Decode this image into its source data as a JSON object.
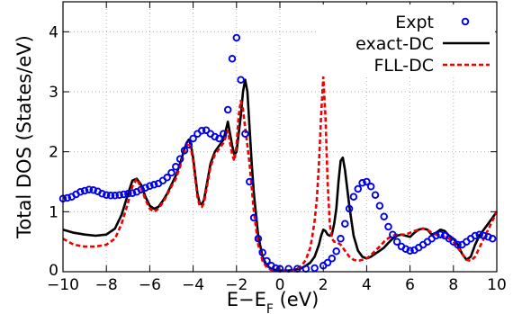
{
  "chart_data": {
    "type": "line",
    "title": "",
    "xlabel": "E−E",
    "xlabel_sub": "F",
    "xlabel_unit": " (eV)",
    "ylabel": "Total DOS (States/eV)",
    "xlim": [
      -10,
      10
    ],
    "ylim": [
      0,
      4.5
    ],
    "x_ticks": [
      -10,
      -8,
      -6,
      -4,
      -2,
      0,
      2,
      4,
      6,
      8,
      10
    ],
    "y_ticks": [
      0,
      1,
      2,
      3,
      4
    ],
    "x_tick_labels": [
      "−10",
      "−8",
      "−6",
      "−4",
      "−2",
      "0",
      "2",
      "4",
      "6",
      "8",
      "10"
    ],
    "y_tick_labels": [
      "0",
      "1",
      "2",
      "3",
      "4"
    ],
    "grid": true,
    "legend_position": "top-right",
    "series": [
      {
        "name": "Expt",
        "style": "markers",
        "color": "#0000ee",
        "x": [
          -10.0,
          -9.8,
          -9.6,
          -9.4,
          -9.2,
          -9.0,
          -8.8,
          -8.6,
          -8.4,
          -8.2,
          -8.0,
          -7.8,
          -7.6,
          -7.4,
          -7.2,
          -7.0,
          -6.8,
          -6.6,
          -6.4,
          -6.2,
          -6.0,
          -5.8,
          -5.6,
          -5.4,
          -5.2,
          -5.0,
          -4.8,
          -4.6,
          -4.4,
          -4.2,
          -4.0,
          -3.8,
          -3.6,
          -3.4,
          -3.2,
          -3.0,
          -2.8,
          -2.6,
          -2.4,
          -2.2,
          -2.0,
          -1.8,
          -1.6,
          -1.4,
          -1.2,
          -1.0,
          -0.8,
          -0.6,
          -0.4,
          -0.2,
          0.0,
          0.4,
          0.8,
          1.2,
          1.6,
          2.0,
          2.2,
          2.4,
          2.6,
          2.8,
          3.0,
          3.2,
          3.4,
          3.6,
          3.8,
          4.0,
          4.2,
          4.4,
          4.6,
          4.8,
          5.0,
          5.2,
          5.4,
          5.6,
          5.8,
          6.0,
          6.2,
          6.4,
          6.6,
          6.8,
          7.0,
          7.2,
          7.4,
          7.6,
          7.8,
          8.0,
          8.2,
          8.4,
          8.6,
          8.8,
          9.0,
          9.2,
          9.4,
          9.6,
          9.8
        ],
        "y": [
          1.22,
          1.23,
          1.25,
          1.29,
          1.33,
          1.35,
          1.37,
          1.36,
          1.34,
          1.3,
          1.28,
          1.27,
          1.27,
          1.28,
          1.29,
          1.3,
          1.31,
          1.33,
          1.37,
          1.4,
          1.43,
          1.45,
          1.47,
          1.52,
          1.57,
          1.65,
          1.75,
          1.88,
          2.02,
          2.12,
          2.22,
          2.3,
          2.35,
          2.36,
          2.3,
          2.25,
          2.22,
          2.3,
          2.7,
          3.55,
          3.9,
          3.2,
          2.3,
          1.5,
          0.9,
          0.55,
          0.32,
          0.18,
          0.1,
          0.06,
          0.05,
          0.05,
          0.05,
          0.05,
          0.06,
          0.1,
          0.15,
          0.22,
          0.34,
          0.55,
          0.8,
          1.05,
          1.25,
          1.38,
          1.48,
          1.5,
          1.42,
          1.28,
          1.1,
          0.92,
          0.75,
          0.62,
          0.5,
          0.42,
          0.38,
          0.35,
          0.36,
          0.4,
          0.45,
          0.5,
          0.55,
          0.6,
          0.62,
          0.6,
          0.55,
          0.5,
          0.45,
          0.45,
          0.5,
          0.55,
          0.6,
          0.62,
          0.6,
          0.58,
          0.55
        ]
      },
      {
        "name": "exact-DC",
        "style": "solid",
        "color": "#000000",
        "x": [
          -10.0,
          -9.5,
          -9.0,
          -8.5,
          -8.0,
          -7.6,
          -7.3,
          -7.0,
          -6.8,
          -6.6,
          -6.4,
          -6.2,
          -6.0,
          -5.8,
          -5.6,
          -5.4,
          -5.2,
          -5.0,
          -4.8,
          -4.6,
          -4.4,
          -4.3,
          -4.2,
          -4.1,
          -4.0,
          -3.9,
          -3.8,
          -3.7,
          -3.6,
          -3.5,
          -3.4,
          -3.3,
          -3.2,
          -3.0,
          -2.8,
          -2.6,
          -2.5,
          -2.4,
          -2.3,
          -2.2,
          -2.1,
          -2.0,
          -1.9,
          -1.8,
          -1.7,
          -1.6,
          -1.5,
          -1.4,
          -1.3,
          -1.2,
          -1.0,
          -0.8,
          -0.6,
          -0.4,
          -0.2,
          0.0,
          0.2,
          0.4,
          0.6,
          0.8,
          1.0,
          1.2,
          1.4,
          1.6,
          1.8,
          1.9,
          2.0,
          2.1,
          2.2,
          2.3,
          2.4,
          2.5,
          2.6,
          2.7,
          2.8,
          2.9,
          3.0,
          3.1,
          3.2,
          3.3,
          3.4,
          3.6,
          3.8,
          4.0,
          4.2,
          4.4,
          4.6,
          4.8,
          5.0,
          5.2,
          5.4,
          5.6,
          5.8,
          6.0,
          6.2,
          6.4,
          6.6,
          6.8,
          7.0,
          7.2,
          7.4,
          7.6,
          7.8,
          8.0,
          8.2,
          8.4,
          8.6,
          8.8,
          9.0,
          9.2,
          9.4,
          9.6,
          9.8,
          10.0
        ],
        "y": [
          0.7,
          0.65,
          0.62,
          0.6,
          0.62,
          0.72,
          0.95,
          1.3,
          1.52,
          1.55,
          1.45,
          1.25,
          1.1,
          1.05,
          1.08,
          1.18,
          1.3,
          1.45,
          1.6,
          1.8,
          2.05,
          2.15,
          2.2,
          2.1,
          1.9,
          1.6,
          1.3,
          1.15,
          1.12,
          1.2,
          1.4,
          1.6,
          1.8,
          2.0,
          2.1,
          2.2,
          2.35,
          2.5,
          2.3,
          2.1,
          1.95,
          2.0,
          2.3,
          2.6,
          3.0,
          3.2,
          3.0,
          2.4,
          1.8,
          1.3,
          0.6,
          0.25,
          0.1,
          0.05,
          0.03,
          0.02,
          0.02,
          0.02,
          0.03,
          0.04,
          0.06,
          0.1,
          0.15,
          0.25,
          0.45,
          0.6,
          0.7,
          0.68,
          0.62,
          0.6,
          0.62,
          0.8,
          1.05,
          1.5,
          1.85,
          1.9,
          1.7,
          1.4,
          1.1,
          0.85,
          0.6,
          0.35,
          0.25,
          0.22,
          0.25,
          0.3,
          0.35,
          0.4,
          0.48,
          0.55,
          0.6,
          0.62,
          0.6,
          0.58,
          0.65,
          0.7,
          0.72,
          0.7,
          0.62,
          0.65,
          0.7,
          0.68,
          0.6,
          0.55,
          0.45,
          0.3,
          0.2,
          0.25,
          0.45,
          0.6,
          0.7,
          0.8,
          0.9,
          1.0
        ]
      },
      {
        "name": "FLL-DC",
        "style": "dashed",
        "color": "#ee0000",
        "x": [
          -10.0,
          -9.5,
          -9.0,
          -8.5,
          -8.0,
          -7.6,
          -7.3,
          -7.0,
          -6.8,
          -6.6,
          -6.4,
          -6.2,
          -6.0,
          -5.8,
          -5.6,
          -5.4,
          -5.2,
          -5.0,
          -4.8,
          -4.6,
          -4.4,
          -4.3,
          -4.2,
          -4.1,
          -4.0,
          -3.9,
          -3.8,
          -3.7,
          -3.6,
          -3.5,
          -3.4,
          -3.3,
          -3.2,
          -3.0,
          -2.8,
          -2.6,
          -2.5,
          -2.4,
          -2.3,
          -2.2,
          -2.1,
          -2.0,
          -1.9,
          -1.8,
          -1.7,
          -1.6,
          -1.5,
          -1.4,
          -1.3,
          -1.2,
          -1.0,
          -0.8,
          -0.6,
          -0.4,
          -0.2,
          0.0,
          0.2,
          0.4,
          0.6,
          0.8,
          1.0,
          1.2,
          1.4,
          1.5,
          1.6,
          1.7,
          1.8,
          1.9,
          2.0,
          2.1,
          2.2,
          2.3,
          2.4,
          2.5,
          2.6,
          2.8,
          3.0,
          3.2,
          3.4,
          3.6,
          3.8,
          4.0,
          4.2,
          4.4,
          4.6,
          4.8,
          5.0,
          5.2,
          5.4,
          5.6,
          5.8,
          6.0,
          6.2,
          6.4,
          6.6,
          6.8,
          7.0,
          7.2,
          7.4,
          7.6,
          7.8,
          8.0,
          8.2,
          8.4,
          8.6,
          8.8,
          9.0,
          9.2,
          9.4,
          9.6,
          9.8,
          10.0
        ],
        "y": [
          0.55,
          0.45,
          0.42,
          0.42,
          0.45,
          0.55,
          0.8,
          1.15,
          1.42,
          1.55,
          1.4,
          1.2,
          1.05,
          1.0,
          1.05,
          1.15,
          1.28,
          1.42,
          1.55,
          1.75,
          2.0,
          2.1,
          2.15,
          2.05,
          1.85,
          1.55,
          1.25,
          1.1,
          1.08,
          1.15,
          1.35,
          1.55,
          1.75,
          1.95,
          2.05,
          2.15,
          2.25,
          2.35,
          2.15,
          1.95,
          1.85,
          2.1,
          2.6,
          2.85,
          2.7,
          2.4,
          2.1,
          1.8,
          1.4,
          1.0,
          0.45,
          0.18,
          0.07,
          0.03,
          0.02,
          0.02,
          0.02,
          0.02,
          0.03,
          0.05,
          0.1,
          0.2,
          0.4,
          0.6,
          0.85,
          1.2,
          1.8,
          2.6,
          3.25,
          2.6,
          1.5,
          0.8,
          0.55,
          0.5,
          0.5,
          0.45,
          0.35,
          0.25,
          0.2,
          0.18,
          0.2,
          0.22,
          0.28,
          0.35,
          0.42,
          0.5,
          0.56,
          0.6,
          0.62,
          0.62,
          0.62,
          0.65,
          0.68,
          0.7,
          0.72,
          0.7,
          0.65,
          0.62,
          0.6,
          0.58,
          0.55,
          0.5,
          0.4,
          0.3,
          0.2,
          0.18,
          0.25,
          0.4,
          0.55,
          0.7,
          0.85,
          1.0
        ]
      }
    ]
  }
}
